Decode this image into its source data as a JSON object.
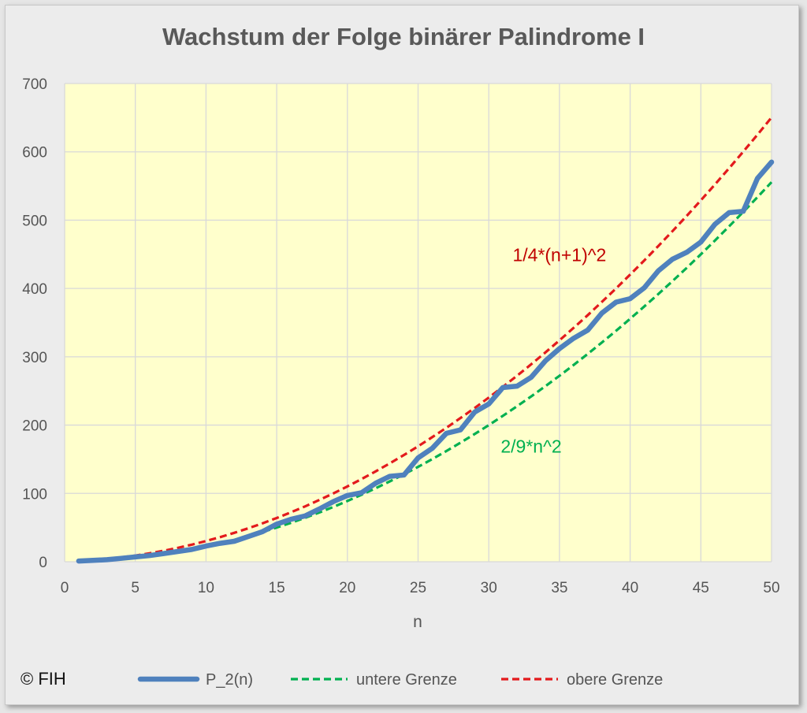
{
  "chart_data": {
    "type": "line",
    "title": "Wachstum  der Folge binärer Palindrome I",
    "xlabel": "n",
    "ylabel": "",
    "xlim": [
      0,
      50
    ],
    "ylim": [
      0,
      700
    ],
    "xticks": [
      0,
      5,
      10,
      15,
      20,
      25,
      30,
      35,
      40,
      45,
      50
    ],
    "yticks": [
      0,
      100,
      200,
      300,
      400,
      500,
      600,
      700
    ],
    "grid": true,
    "legend_position": "bottom",
    "plot_background": "#ffffcc",
    "x": [
      1,
      2,
      3,
      4,
      5,
      6,
      7,
      8,
      9,
      10,
      11,
      12,
      13,
      14,
      15,
      16,
      17,
      18,
      19,
      20,
      21,
      22,
      23,
      24,
      25,
      26,
      27,
      28,
      29,
      30,
      31,
      32,
      33,
      34,
      35,
      36,
      37,
      38,
      39,
      40,
      41,
      42,
      43,
      44,
      45,
      46,
      47,
      48,
      49,
      50
    ],
    "series": [
      {
        "name": "P_2(n)",
        "color": "#4f81bd",
        "style": "solid",
        "values": [
          1,
          2,
          3,
          5,
          7,
          9,
          12,
          15,
          18,
          23,
          27,
          30,
          37,
          44,
          55,
          62,
          67,
          77,
          88,
          97,
          101,
          115,
          125,
          127,
          152,
          166,
          188,
          193,
          219,
          231,
          255,
          257,
          270,
          294,
          312,
          327,
          339,
          364,
          380,
          385,
          401,
          426,
          443,
          453,
          468,
          494,
          511,
          513,
          561,
          585
        ]
      },
      {
        "name": "untere Grenze",
        "color": "#00b050",
        "style": "dashed",
        "values": [
          0.2,
          0.9,
          2.0,
          3.6,
          5.6,
          8.0,
          10.9,
          14.2,
          18.0,
          22.2,
          26.9,
          32.0,
          37.6,
          43.6,
          50.0,
          56.9,
          64.2,
          72.0,
          80.2,
          88.9,
          98.0,
          107.6,
          117.6,
          128.0,
          138.9,
          150.2,
          162.0,
          174.2,
          186.9,
          200.0,
          213.6,
          227.6,
          242.0,
          256.9,
          272.2,
          288.0,
          304.2,
          320.9,
          338.0,
          355.6,
          373.6,
          392.0,
          410.9,
          430.2,
          450.0,
          470.2,
          490.9,
          512.0,
          533.6,
          555.6
        ]
      },
      {
        "name": "obere Grenze",
        "color": "#e31a1c",
        "style": "dashed",
        "values": [
          1.0,
          2.3,
          4.0,
          6.3,
          9.0,
          12.3,
          16.0,
          20.3,
          25.0,
          30.3,
          36.0,
          42.3,
          49.0,
          56.3,
          64.0,
          72.3,
          81.0,
          90.3,
          100.0,
          110.3,
          121.0,
          132.3,
          144.0,
          156.3,
          169.0,
          182.3,
          196.0,
          210.3,
          225.0,
          240.3,
          256.0,
          272.3,
          289.0,
          306.3,
          324.0,
          342.3,
          361.0,
          380.3,
          400.0,
          420.3,
          441.0,
          462.3,
          484.0,
          506.3,
          529.0,
          552.3,
          576.0,
          600.3,
          625.0,
          650.3
        ]
      }
    ],
    "annotations": [
      {
        "text": "1/4*(n+1)^2",
        "color": "#c00000",
        "x": 35,
        "y": 440
      },
      {
        "text": "2/9*n^2",
        "color": "#00b050",
        "x": 33,
        "y": 160
      }
    ]
  },
  "copyright": "© FIH"
}
